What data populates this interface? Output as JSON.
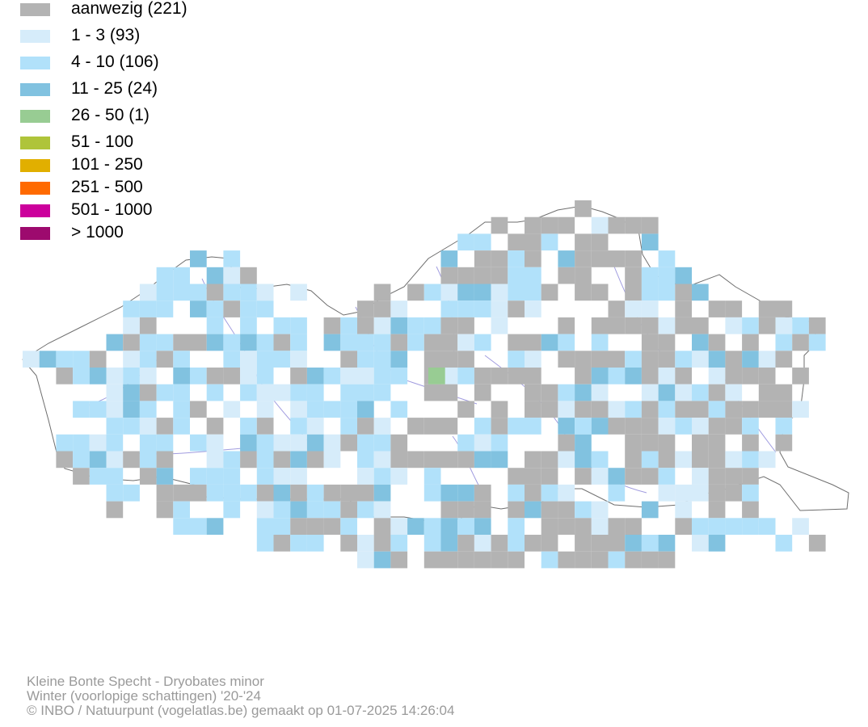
{
  "legend": [
    {
      "label": "aanwezig (221)",
      "color": "#b3b3b3"
    },
    {
      "label": "1 - 3 (93)",
      "color": "#d6ecfa"
    },
    {
      "label": "4 - 10 (106)",
      "color": "#b1e1fa"
    },
    {
      "label": "11 - 25 (24)",
      "color": "#81c2e0"
    },
    {
      "label": "26 - 50 (1)",
      "color": "#98cc93"
    },
    {
      "label": "51 - 100",
      "color": "#afc43a"
    },
    {
      "label": "101 - 250",
      "color": "#e1af00"
    },
    {
      "label": "251 - 500",
      "color": "#ff6a00"
    },
    {
      "label": "501 - 1000",
      "color": "#cc009c"
    },
    {
      "label": "> 1000",
      "color": "#9d0a6e"
    }
  ],
  "footer": {
    "line1": "Kleine Bonte Specht - Dryobates minor",
    "line2": "Winter (voorlopige schattingen) '20-'24",
    "line3": "© INBO / Natuurpunt (vogelatlas.be) gemaakt op 01-07-2025 14:26:04"
  }
}
